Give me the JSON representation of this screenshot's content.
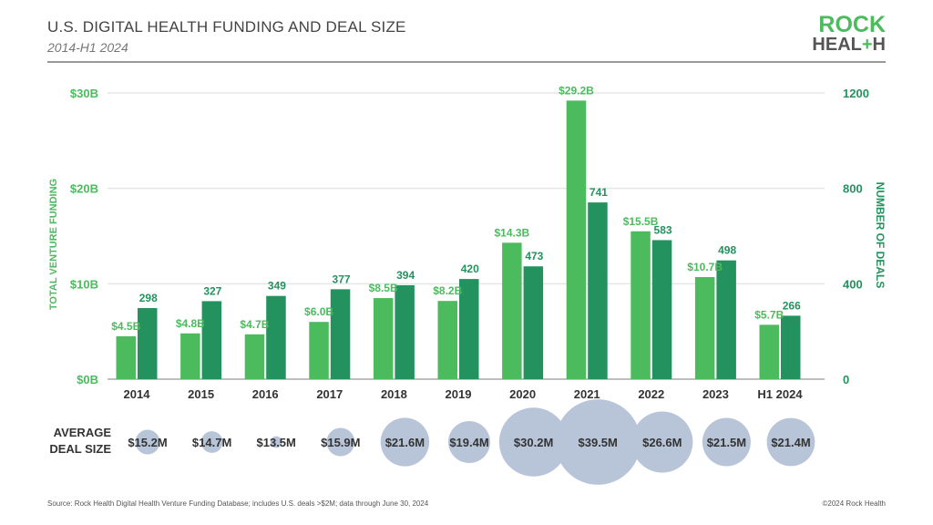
{
  "header": {
    "title": "U.S. DIGITAL HEALTH FUNDING AND DEAL SIZE",
    "subtitle": "2014-H1 2024",
    "logo_text": "ROCK HEALTH"
  },
  "chart_data": {
    "type": "bar",
    "categories": [
      "2014",
      "2015",
      "2016",
      "2017",
      "2018",
      "2019",
      "2020",
      "2021",
      "2022",
      "2023",
      "H1 2024"
    ],
    "series": [
      {
        "name": "TOTAL VENTURE FUNDING",
        "axis": "left",
        "unit": "$B",
        "color": "#4cbb5e",
        "values": [
          4.5,
          4.8,
          4.7,
          6.0,
          8.5,
          8.2,
          14.3,
          29.2,
          15.5,
          10.7,
          5.7
        ],
        "labels": [
          "$4.5B",
          "$4.8B",
          "$4.7B",
          "$6.0B",
          "$8.5B",
          "$8.2B",
          "$14.3B",
          "$29.2B",
          "$15.5B",
          "$10.7B",
          "$5.7B"
        ]
      },
      {
        "name": "NUMBER OF DEALS",
        "axis": "right",
        "color": "#23925f",
        "values": [
          298,
          327,
          349,
          377,
          394,
          420,
          473,
          741,
          583,
          498,
          266
        ],
        "labels": [
          "298",
          "327",
          "349",
          "377",
          "394",
          "420",
          "473",
          "741",
          "583",
          "498",
          "266"
        ]
      }
    ],
    "left_axis": {
      "label": "TOTAL VENTURE FUNDING",
      "ylim": [
        0,
        30
      ],
      "ticks": [
        0,
        10,
        20,
        30
      ],
      "tick_labels": [
        "$0B",
        "$10B",
        "$20B",
        "$30B"
      ]
    },
    "right_axis": {
      "label": "NUMBER OF DEALS",
      "ylim": [
        0,
        1200
      ],
      "ticks": [
        0,
        400,
        800,
        1200
      ],
      "tick_labels": [
        "0",
        "400",
        "800",
        "1200"
      ]
    },
    "grid": true,
    "bubbles": {
      "label_line1": "AVERAGE",
      "label_line2": "DEAL SIZE",
      "color": "#b8c5d9",
      "values": [
        15.2,
        14.7,
        13.5,
        15.9,
        21.6,
        19.4,
        30.2,
        39.5,
        26.6,
        21.5,
        21.4
      ],
      "labels": [
        "$15.2M",
        "$14.7M",
        "$13.5M",
        "$15.9M",
        "$21.6M",
        "$19.4M",
        "$30.2M",
        "$39.5M",
        "$26.6M",
        "$21.5M",
        "$21.4M"
      ]
    }
  },
  "footer": {
    "source": "Source: Rock Health Digital Health Venture Funding Database; includes U.S. deals >$2M; data through June 30, 2024",
    "copyright": "©2024 Rock Health"
  }
}
